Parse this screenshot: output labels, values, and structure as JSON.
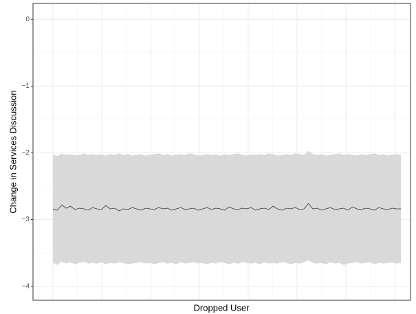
{
  "chart_data": {
    "type": "line",
    "xlabel": "Dropped User",
    "ylabel": "Change in Services Discussion",
    "ylim": [
      -4.21,
      0.24
    ],
    "yticks": [
      0,
      {
        "value": -1,
        "label": "−1"
      },
      {
        "value": -2,
        "label": "−2"
      },
      {
        "value": -3,
        "label": "−3"
      },
      {
        "value": -4,
        "label": "−4"
      }
    ],
    "grid": true,
    "series": [
      {
        "color": "#333333",
        "values": [
          -2.84,
          -2.86,
          -2.78,
          -2.83,
          -2.8,
          -2.85,
          -2.83,
          -2.84,
          -2.86,
          -2.82,
          -2.84,
          -2.85,
          -2.79,
          -2.84,
          -2.83,
          -2.87,
          -2.84,
          -2.85,
          -2.82,
          -2.84,
          -2.86,
          -2.83,
          -2.84,
          -2.85,
          -2.82,
          -2.84,
          -2.83,
          -2.86,
          -2.84,
          -2.82,
          -2.85,
          -2.84,
          -2.83,
          -2.86,
          -2.84,
          -2.82,
          -2.85,
          -2.83,
          -2.84,
          -2.86,
          -2.81,
          -2.84,
          -2.85,
          -2.83,
          -2.84,
          -2.82,
          -2.86,
          -2.84,
          -2.83,
          -2.85,
          -2.8,
          -2.84,
          -2.86,
          -2.83,
          -2.84,
          -2.82,
          -2.85,
          -2.84,
          -2.76,
          -2.84,
          -2.83,
          -2.86,
          -2.84,
          -2.82,
          -2.85,
          -2.84,
          -2.83,
          -2.86,
          -2.81,
          -2.84,
          -2.85,
          -2.83,
          -2.84,
          -2.86,
          -2.82,
          -2.84,
          -2.85,
          -2.83,
          -2.84,
          -2.84
        ]
      }
    ],
    "band_color": "#d9d9d9",
    "band_upper": [
      -2.02,
      -2.05,
      -2.01,
      -2.03,
      -2.02,
      -2.04,
      -2.03,
      -2.01,
      -2.03,
      -2.02,
      -2.03,
      -2.02,
      -2.04,
      -2.02,
      -2.03,
      -2.01,
      -2.03,
      -2.02,
      -2.04,
      -2.03,
      -2.02,
      -2.04,
      -2.03,
      -2.02,
      -2.01,
      -2.03,
      -2.02,
      -2.04,
      -2.03,
      -2.02,
      -2.03,
      -2.01,
      -2.02,
      -2.04,
      -2.03,
      -2.02,
      -2.03,
      -2.02,
      -2.04,
      -2.02,
      -2.03,
      -2.02,
      -2.01,
      -2.03,
      -2.04,
      -2.02,
      -2.03,
      -2.02,
      -2.03,
      -2.01,
      -2.02,
      -2.04,
      -2.03,
      -2.02,
      -2.03,
      -2.01,
      -2.02,
      -2.03,
      -1.97,
      -2.02,
      -2.03,
      -2.02,
      -2.04,
      -2.03,
      -2.02,
      -2.01,
      -2.03,
      -2.02,
      -2.03,
      -2.04,
      -2.02,
      -2.03,
      -2.02,
      -2.01,
      -2.03,
      -2.02,
      -2.04,
      -2.03,
      -2.02,
      -2.03
    ],
    "band_lower": [
      -3.65,
      -3.68,
      -3.63,
      -3.66,
      -3.64,
      -3.67,
      -3.65,
      -3.63,
      -3.66,
      -3.65,
      -3.66,
      -3.64,
      -3.67,
      -3.65,
      -3.66,
      -3.64,
      -3.65,
      -3.67,
      -3.66,
      -3.65,
      -3.64,
      -3.66,
      -3.65,
      -3.67,
      -3.65,
      -3.64,
      -3.66,
      -3.65,
      -3.67,
      -3.64,
      -3.66,
      -3.65,
      -3.64,
      -3.66,
      -3.65,
      -3.67,
      -3.65,
      -3.66,
      -3.64,
      -3.65,
      -3.67,
      -3.65,
      -3.66,
      -3.64,
      -3.65,
      -3.66,
      -3.65,
      -3.67,
      -3.64,
      -3.66,
      -3.65,
      -3.66,
      -3.64,
      -3.65,
      -3.67,
      -3.65,
      -3.66,
      -3.64,
      -3.61,
      -3.65,
      -3.66,
      -3.65,
      -3.67,
      -3.64,
      -3.66,
      -3.65,
      -3.68,
      -3.66,
      -3.65,
      -3.64,
      -3.66,
      -3.65,
      -3.64,
      -3.67,
      -3.65,
      -3.66,
      -3.65,
      -3.64,
      -3.66,
      -3.65
    ]
  }
}
